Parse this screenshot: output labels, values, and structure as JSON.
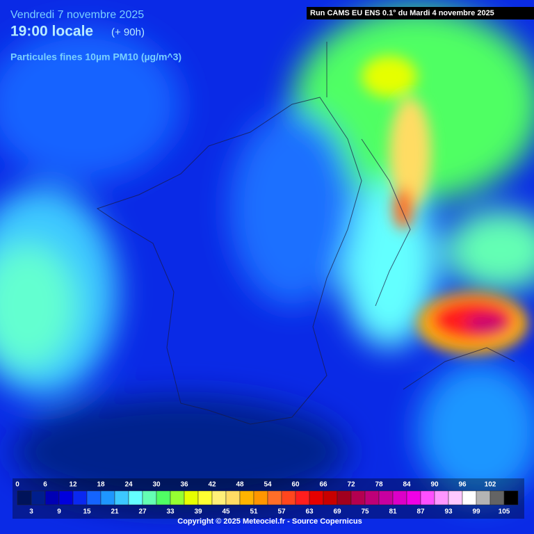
{
  "header": {
    "date": "Vendredi 7 novembre 2025",
    "time": "19:00 locale",
    "lead": "(+ 90h)",
    "parameter": "Particules fines 10µm PM10 (µg/m^3)",
    "run": "Run CAMS EU ENS 0.1° du Mardi 4 novembre 2025"
  },
  "scale": {
    "ticks": [
      0,
      3,
      6,
      9,
      12,
      15,
      18,
      21,
      24,
      27,
      30,
      33,
      36,
      39,
      42,
      45,
      48,
      51,
      54,
      57,
      60,
      63,
      66,
      69,
      72,
      75,
      78,
      81,
      84,
      87,
      90,
      93,
      96,
      99,
      102,
      105
    ],
    "colors": [
      "#00135a",
      "#001e8c",
      "#0000b4",
      "#0000dc",
      "#0a28f0",
      "#1464ff",
      "#1e96ff",
      "#3cc8ff",
      "#64ffff",
      "#64ffb4",
      "#50ff64",
      "#96ff32",
      "#e6ff00",
      "#ffff32",
      "#fff078",
      "#ffdc64",
      "#ffb400",
      "#ff9600",
      "#ff6e28",
      "#ff461e",
      "#ff1e1e",
      "#e60000",
      "#c80000",
      "#a0001e",
      "#b40050",
      "#be0078",
      "#c800a0",
      "#dc00c8",
      "#f000e6",
      "#ff50ff",
      "#ff96ff",
      "#ffc8ff",
      "#ffffff",
      "#b4b4b4",
      "#646464",
      "#000000"
    ]
  },
  "footer": {
    "copyright": "Copyright © 2025 Meteociel.fr - Source Copernicus"
  }
}
